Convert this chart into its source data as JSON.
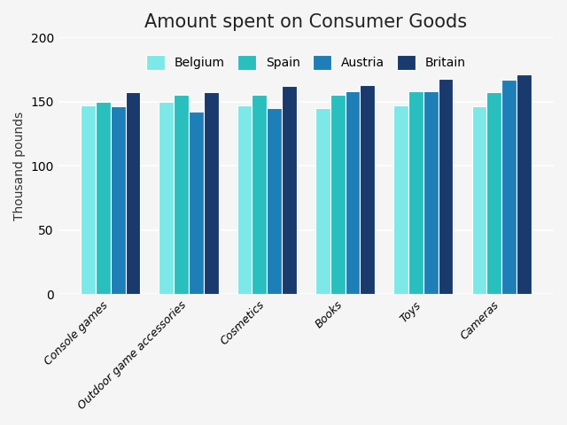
{
  "title": "Amount spent on Consumer Goods",
  "ylabel": "Thousand pounds",
  "categories": [
    "Console games",
    "Outdoor game accessories",
    "Cosmetics",
    "Books",
    "Toys",
    "Cameras"
  ],
  "countries": [
    "Belgium",
    "Spain",
    "Austria",
    "Britain"
  ],
  "values": {
    "Belgium": [
      147,
      150,
      147,
      145,
      147,
      146
    ],
    "Spain": [
      150,
      155,
      155,
      155,
      158,
      157
    ],
    "Austria": [
      146,
      142,
      145,
      158,
      158,
      167
    ],
    "Britain": [
      157,
      157,
      162,
      163,
      168,
      171
    ]
  },
  "colors": {
    "Belgium": "#7DE8E8",
    "Spain": "#29BFBF",
    "Austria": "#1E7FB8",
    "Britain": "#1A3A6E"
  },
  "ylim": [
    0,
    200
  ],
  "yticks": [
    0,
    50,
    100,
    150,
    200
  ],
  "background_color": "#f5f5f5",
  "plot_bg_color": "#f5f5f5",
  "grid_color": "#ffffff",
  "bar_width": 0.19,
  "title_fontsize": 15,
  "label_fontsize": 10,
  "tick_fontsize": 9,
  "legend_fontsize": 10
}
